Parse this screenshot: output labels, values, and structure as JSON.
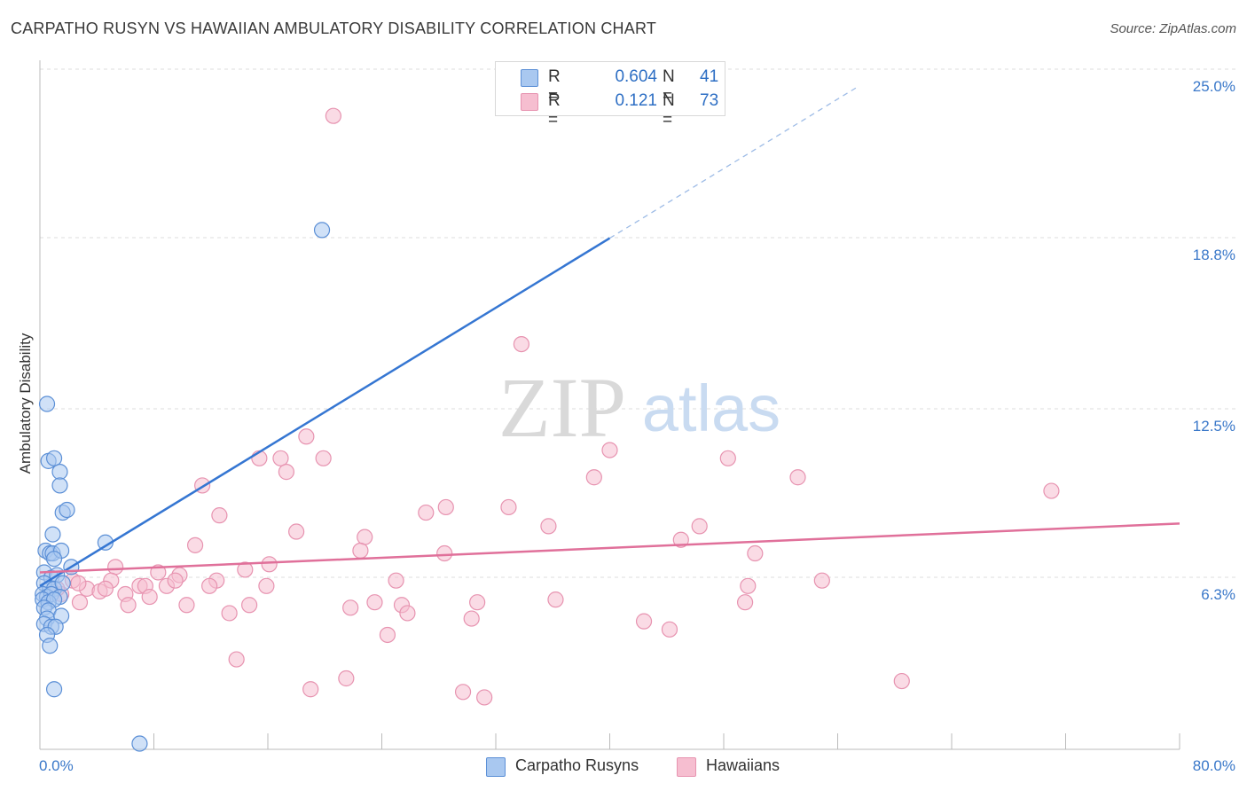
{
  "header": {
    "title": "CARPATHO RUSYN VS HAWAIIAN AMBULATORY DISABILITY CORRELATION CHART",
    "source": "Source: ZipAtlas.com"
  },
  "watermark": {
    "zip": "ZIP",
    "atlas": "atlas"
  },
  "legend": {
    "rows": [
      {
        "r_label": "R =",
        "r_value": "0.604",
        "n_label": "N =",
        "n_value": "41"
      },
      {
        "r_label": "R =",
        "r_value": "0.121",
        "n_label": "N =",
        "n_value": "73"
      }
    ]
  },
  "bottom_legend": {
    "items": [
      "Carpatho Rusyns",
      "Hawaiians"
    ]
  },
  "chart_data": {
    "type": "scatter",
    "title": "CARPATHO RUSYN VS HAWAIIAN AMBULATORY DISABILITY CORRELATION CHART",
    "xlabel": "",
    "ylabel": "Ambulatory Disability",
    "xlim": [
      0,
      80
    ],
    "ylim": [
      0,
      25.5
    ],
    "x_tick_labels": [
      "0.0%",
      "80.0%"
    ],
    "y_ticks": [
      6.3,
      12.5,
      18.8,
      25.0
    ],
    "y_tick_labels": [
      "6.3%",
      "12.5%",
      "18.8%",
      "25.0%"
    ],
    "grid": true,
    "colors": {
      "blue_fill": "#a9c8f0",
      "blue_stroke": "#5b8fd6",
      "blue_line": "#3576d2",
      "pink_fill": "#f6bed0",
      "pink_stroke": "#e793b0",
      "pink_line": "#e0709a"
    },
    "series": [
      {
        "name": "Carpatho Rusyns",
        "color": "#5b8fd6",
        "trend": {
          "x0": 0,
          "y0": 6.6,
          "x1": 40,
          "y1": 19.4,
          "dash_to_x": 57.5,
          "dash_to_y": 25.0
        },
        "points": [
          [
            0.5,
            13.3
          ],
          [
            0.6,
            11.2
          ],
          [
            1.0,
            11.3
          ],
          [
            1.4,
            10.8
          ],
          [
            1.4,
            10.3
          ],
          [
            1.6,
            9.3
          ],
          [
            1.9,
            9.4
          ],
          [
            0.9,
            8.5
          ],
          [
            0.4,
            7.9
          ],
          [
            0.7,
            7.8
          ],
          [
            0.9,
            7.8
          ],
          [
            1.5,
            7.9
          ],
          [
            4.6,
            8.2
          ],
          [
            1.0,
            7.6
          ],
          [
            2.2,
            7.3
          ],
          [
            0.3,
            7.1
          ],
          [
            0.8,
            6.9
          ],
          [
            1.2,
            7.0
          ],
          [
            0.3,
            6.7
          ],
          [
            0.7,
            6.5
          ],
          [
            1.0,
            6.5
          ],
          [
            1.6,
            6.7
          ],
          [
            0.2,
            6.3
          ],
          [
            0.5,
            6.2
          ],
          [
            0.8,
            6.3
          ],
          [
            1.4,
            6.2
          ],
          [
            0.2,
            6.1
          ],
          [
            0.6,
            6.0
          ],
          [
            1.0,
            6.1
          ],
          [
            0.3,
            5.8
          ],
          [
            0.6,
            5.7
          ],
          [
            0.5,
            5.4
          ],
          [
            1.5,
            5.5
          ],
          [
            0.3,
            5.2
          ],
          [
            0.8,
            5.1
          ],
          [
            1.1,
            5.1
          ],
          [
            0.5,
            4.8
          ],
          [
            0.7,
            4.4
          ],
          [
            1.0,
            2.8
          ],
          [
            19.8,
            19.7
          ],
          [
            7.0,
            0.8
          ]
        ]
      },
      {
        "name": "Hawaiians",
        "color": "#e793b0",
        "trend": {
          "x0": 0,
          "y0": 7.1,
          "x1": 80,
          "y1": 8.9
        },
        "points": [
          [
            20.6,
            23.9
          ],
          [
            33.8,
            15.5
          ],
          [
            18.7,
            12.1
          ],
          [
            15.4,
            11.3
          ],
          [
            16.9,
            11.3
          ],
          [
            19.9,
            11.3
          ],
          [
            40.0,
            11.6
          ],
          [
            17.3,
            10.8
          ],
          [
            38.9,
            10.6
          ],
          [
            48.3,
            11.3
          ],
          [
            53.2,
            10.6
          ],
          [
            71.0,
            10.1
          ],
          [
            11.4,
            10.3
          ],
          [
            28.5,
            9.5
          ],
          [
            27.1,
            9.3
          ],
          [
            32.9,
            9.5
          ],
          [
            12.6,
            9.2
          ],
          [
            35.7,
            8.8
          ],
          [
            46.3,
            8.8
          ],
          [
            18.0,
            8.6
          ],
          [
            22.8,
            8.4
          ],
          [
            10.9,
            8.1
          ],
          [
            45.0,
            8.3
          ],
          [
            22.5,
            7.9
          ],
          [
            28.4,
            7.8
          ],
          [
            50.2,
            7.8
          ],
          [
            5.3,
            7.3
          ],
          [
            14.4,
            7.2
          ],
          [
            16.1,
            7.4
          ],
          [
            8.3,
            7.1
          ],
          [
            9.8,
            7.0
          ],
          [
            25.0,
            6.8
          ],
          [
            49.7,
            6.6
          ],
          [
            54.9,
            6.8
          ],
          [
            12.4,
            6.8
          ],
          [
            2.3,
            6.8
          ],
          [
            5.0,
            6.8
          ],
          [
            7.0,
            6.6
          ],
          [
            7.4,
            6.6
          ],
          [
            8.9,
            6.6
          ],
          [
            9.5,
            6.8
          ],
          [
            11.9,
            6.6
          ],
          [
            15.9,
            6.6
          ],
          [
            3.3,
            6.5
          ],
          [
            4.2,
            6.4
          ],
          [
            4.6,
            6.5
          ],
          [
            6.0,
            6.3
          ],
          [
            1.5,
            6.3
          ],
          [
            7.7,
            6.2
          ],
          [
            2.8,
            6.0
          ],
          [
            6.2,
            5.9
          ],
          [
            10.3,
            5.9
          ],
          [
            14.7,
            5.9
          ],
          [
            21.8,
            5.8
          ],
          [
            23.5,
            6.0
          ],
          [
            25.4,
            5.9
          ],
          [
            30.7,
            6.0
          ],
          [
            36.2,
            6.1
          ],
          [
            49.5,
            6.0
          ],
          [
            13.3,
            5.6
          ],
          [
            25.8,
            5.6
          ],
          [
            30.3,
            5.4
          ],
          [
            42.4,
            5.3
          ],
          [
            44.2,
            5.0
          ],
          [
            24.4,
            4.8
          ],
          [
            13.8,
            3.9
          ],
          [
            19.0,
            2.8
          ],
          [
            21.5,
            3.2
          ],
          [
            29.7,
            2.7
          ],
          [
            31.2,
            2.5
          ],
          [
            60.5,
            3.1
          ],
          [
            2.7,
            6.7
          ],
          [
            1.2,
            6.5
          ]
        ]
      }
    ]
  }
}
